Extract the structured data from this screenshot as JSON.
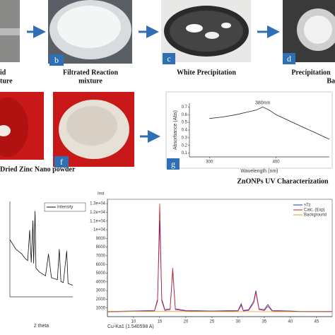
{
  "photos": {
    "a": {
      "caption": [
        "id",
        "ture"
      ]
    },
    "b": {
      "label": "b",
      "caption": [
        "Filtrated Reaction",
        "mixture"
      ]
    },
    "c": {
      "label": "c",
      "caption": [
        "White Precipitation"
      ]
    },
    "d": {
      "label": "d",
      "caption": [
        "Precipitation",
        "Ba"
      ]
    },
    "e": {
      "caption": [
        "Dried Zinc  Nano powder"
      ]
    },
    "f": {
      "label": "f"
    },
    "g": {
      "label": "g",
      "caption": [
        "ZnONPs UV Characterization"
      ]
    }
  },
  "chart_data": [
    {
      "type": "line",
      "annotation": "380nm",
      "xlabel": "Wavelength (nm)",
      "ylabel": "Absorbance (Abs)",
      "xlim": [
        270,
        480
      ],
      "ylim": [
        0.05,
        0.75
      ],
      "xticks": [
        300,
        400
      ],
      "yticks": [
        0.1,
        0.2,
        0.3,
        0.4,
        0.5,
        0.6,
        0.7
      ],
      "series": [
        {
          "name": null,
          "color": "#222222",
          "x": [
            300,
            320,
            340,
            360,
            370,
            380,
            390,
            400,
            420,
            440,
            460,
            480
          ],
          "values": [
            0.55,
            0.57,
            0.6,
            0.64,
            0.66,
            0.7,
            0.66,
            0.6,
            0.52,
            0.44,
            0.36,
            0.28
          ]
        }
      ]
    },
    {
      "type": "line",
      "xlabel": "2 theta",
      "legend": "upper right",
      "xlim": [
        15,
        68
      ],
      "ylim": [
        0,
        10
      ],
      "series": [
        {
          "name": "Intensity",
          "color": "#111111",
          "x": [
            15,
            20,
            25,
            28,
            30,
            31.7,
            33,
            34.4,
            35,
            36.2,
            37,
            40,
            45,
            47.5,
            50,
            55,
            56.6,
            58,
            60,
            62.9,
            64,
            66,
            68
          ],
          "values": [
            6,
            5,
            4.5,
            4,
            3.8,
            7,
            3.6,
            8,
            3.5,
            9,
            3,
            2.6,
            2.2,
            4.5,
            2,
            1.8,
            5,
            1.6,
            1.5,
            4.8,
            1.4,
            1.3,
            1.2
          ]
        }
      ]
    },
    {
      "type": "line",
      "xlabel": "Cu-Ka1 (1.540598 A)",
      "ylabel": "Inst",
      "legend": "upper right",
      "xlim": [
        5,
        48
      ],
      "ylim": [
        0,
        13500
      ],
      "xticks": [
        10,
        15,
        20,
        25,
        30,
        35,
        40,
        45
      ],
      "yticks": [
        1000,
        2000,
        3000,
        4000,
        5000,
        6000,
        7000,
        8000,
        9000,
        {
          "value": 10000,
          "label": "1e+04"
        },
        {
          "value": 11000,
          "label": "1.1e+04"
        },
        {
          "value": 12000,
          "label": "1.2e+04"
        },
        {
          "value": 13000,
          "label": "1.3e+04"
        }
      ],
      "series": [
        {
          "name": "s7z",
          "color": "#2a2ad0",
          "x": [
            5,
            10,
            14,
            14.6,
            15,
            15.4,
            16,
            17,
            17.5,
            18,
            20,
            25,
            30,
            30.6,
            31,
            32,
            33,
            33.4,
            34,
            35,
            35.7,
            36.5,
            40,
            42,
            45,
            48
          ],
          "values": [
            600,
            650,
            700,
            2000,
            11000,
            2000,
            800,
            900,
            5300,
            900,
            700,
            650,
            700,
            1500,
            700,
            800,
            1800,
            3000,
            900,
            800,
            1400,
            700,
            650,
            600,
            600,
            600
          ]
        },
        {
          "name": "Calc. (Exp)",
          "color": "#cc2222",
          "x": [
            5,
            10,
            14,
            14.6,
            15,
            15.4,
            16,
            17,
            17.5,
            18,
            20,
            25,
            30,
            30.6,
            31,
            32,
            33,
            33.4,
            34,
            35,
            35.7,
            36.5,
            40,
            42,
            45,
            48
          ],
          "values": [
            550,
            600,
            650,
            1800,
            13000,
            1800,
            700,
            800,
            5600,
            800,
            650,
            600,
            650,
            1300,
            650,
            700,
            1600,
            2800,
            800,
            700,
            1200,
            650,
            600,
            550,
            550,
            550
          ]
        },
        {
          "name": "Background",
          "color": "#e0a030",
          "x": [
            5,
            48
          ],
          "values": [
            600,
            550
          ]
        }
      ]
    }
  ]
}
